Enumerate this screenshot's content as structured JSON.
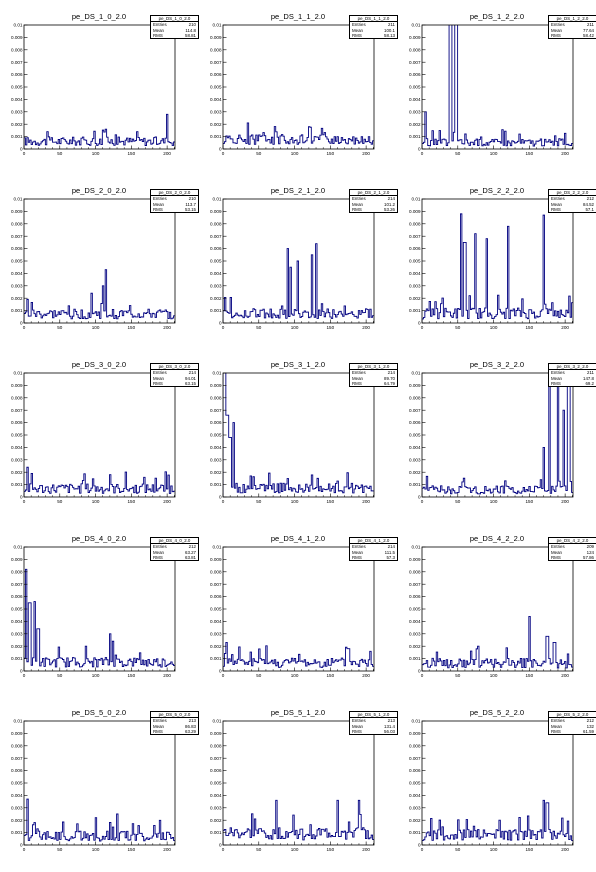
{
  "colors": {
    "line": "#000080",
    "frame": "#000000",
    "background": "#ffffff"
  },
  "stat_labels": [
    "Entries",
    "Mean",
    "RMS"
  ],
  "chart_data": [
    {
      "type": "line",
      "title": "pe_DS_1_0_2.0",
      "stats_name": "pe_DS_1_0_2.0",
      "entries": "210",
      "mean": "114.8",
      "rms": "58.81",
      "xlim": [
        0,
        211
      ],
      "ylim": [
        0,
        0.01
      ],
      "xticks": [
        "0",
        "50",
        "100",
        "150",
        "200"
      ],
      "yticks": [
        "0",
        "0.001",
        "0.002",
        "0.003",
        "0.004",
        "0.005",
        "0.006",
        "0.007",
        "0.008",
        "0.009",
        "0.01"
      ]
    },
    {
      "type": "line",
      "title": "pe_DS_1_1_2.0",
      "stats_name": "pe_DS_1_1_2.0",
      "entries": "211",
      "mean": "100.1",
      "rms": "58.13",
      "xlim": [
        0,
        211
      ],
      "ylim": [
        0,
        0.01
      ],
      "xticks": [
        "0",
        "50",
        "100",
        "150",
        "200"
      ],
      "yticks": [
        "0",
        "0.001",
        "0.002",
        "0.003",
        "0.004",
        "0.005",
        "0.006",
        "0.007",
        "0.008",
        "0.009",
        "0.01"
      ]
    },
    {
      "type": "line",
      "title": "pe_DS_1_2_2.0",
      "stats_name": "pe_DS_1_2_2.0",
      "entries": "211",
      "mean": "77.64",
      "rms": "58.42",
      "xlim": [
        0,
        211
      ],
      "ylim": [
        0,
        0.01
      ],
      "xticks": [
        "0",
        "50",
        "100",
        "150",
        "200"
      ],
      "yticks": [
        "0",
        "0.001",
        "0.002",
        "0.003",
        "0.004",
        "0.005",
        "0.006",
        "0.007",
        "0.008",
        "0.009",
        "0.01"
      ]
    },
    {
      "type": "line",
      "title": "pe_DS_2_0_2.0",
      "stats_name": "pe_DS_2_0_2.0",
      "entries": "210",
      "mean": "113.7",
      "rms": "53.15",
      "xlim": [
        0,
        211
      ],
      "ylim": [
        0,
        0.01
      ],
      "xticks": [
        "0",
        "50",
        "100",
        "150",
        "200"
      ],
      "yticks": [
        "0",
        "0.001",
        "0.002",
        "0.003",
        "0.004",
        "0.005",
        "0.006",
        "0.007",
        "0.008",
        "0.009",
        "0.01"
      ]
    },
    {
      "type": "line",
      "title": "pe_DS_2_1_2.0",
      "stats_name": "pe_DS_2_1_2.0",
      "entries": "214",
      "mean": "101.2",
      "rms": "53.26",
      "xlim": [
        0,
        211
      ],
      "ylim": [
        0,
        0.01
      ],
      "xticks": [
        "0",
        "50",
        "100",
        "150",
        "200"
      ],
      "yticks": [
        "0",
        "0.001",
        "0.002",
        "0.003",
        "0.004",
        "0.005",
        "0.006",
        "0.007",
        "0.008",
        "0.009",
        "0.01"
      ]
    },
    {
      "type": "line",
      "title": "pe_DS_2_2_2.0",
      "stats_name": "pe_DS_2_2_2.0",
      "entries": "212",
      "mean": "84.52",
      "rms": "57.1",
      "xlim": [
        0,
        211
      ],
      "ylim": [
        0,
        0.01
      ],
      "xticks": [
        "0",
        "50",
        "100",
        "150",
        "200"
      ],
      "yticks": [
        "0",
        "0.001",
        "0.002",
        "0.003",
        "0.004",
        "0.005",
        "0.006",
        "0.007",
        "0.008",
        "0.009",
        "0.01"
      ]
    },
    {
      "type": "line",
      "title": "pe_DS_3_0_2.0",
      "stats_name": "pe_DS_3_0_2.0",
      "entries": "214",
      "mean": "94.01",
      "rms": "63.15",
      "xlim": [
        0,
        211
      ],
      "ylim": [
        0,
        0.01
      ],
      "xticks": [
        "0",
        "50",
        "100",
        "150",
        "200"
      ],
      "yticks": [
        "0",
        "0.001",
        "0.002",
        "0.003",
        "0.004",
        "0.005",
        "0.006",
        "0.007",
        "0.008",
        "0.009",
        "0.01"
      ]
    },
    {
      "type": "line",
      "title": "pe_DS_3_1_2.0",
      "stats_name": "pe_DS_3_1_2.0",
      "entries": "214",
      "mean": "89.70",
      "rms": "64.79",
      "xlim": [
        0,
        211
      ],
      "ylim": [
        0,
        0.01
      ],
      "xticks": [
        "0",
        "50",
        "100",
        "150",
        "200"
      ],
      "yticks": [
        "0",
        "0.001",
        "0.002",
        "0.003",
        "0.004",
        "0.005",
        "0.006",
        "0.007",
        "0.008",
        "0.009",
        "0.01"
      ]
    },
    {
      "type": "line",
      "title": "pe_DS_3_2_2.0",
      "stats_name": "pe_DS_3_2_2.0",
      "entries": "211",
      "mean": "147.8",
      "rms": "69.2",
      "xlim": [
        0,
        211
      ],
      "ylim": [
        0,
        0.01
      ],
      "xticks": [
        "0",
        "50",
        "100",
        "150",
        "200"
      ],
      "yticks": [
        "0",
        "0.001",
        "0.002",
        "0.003",
        "0.004",
        "0.005",
        "0.006",
        "0.007",
        "0.008",
        "0.009",
        "0.01"
      ]
    },
    {
      "type": "line",
      "title": "pe_DS_4_0_2.0",
      "stats_name": "pe_DS_4_0_2.0",
      "entries": "212",
      "mean": "63.27",
      "rms": "63.81",
      "xlim": [
        0,
        211
      ],
      "ylim": [
        0,
        0.01
      ],
      "xticks": [
        "0",
        "50",
        "100",
        "150",
        "200"
      ],
      "yticks": [
        "0",
        "0.001",
        "0.002",
        "0.003",
        "0.004",
        "0.005",
        "0.006",
        "0.007",
        "0.008",
        "0.009",
        "0.01"
      ]
    },
    {
      "type": "line",
      "title": "pe_DS_4_1_2.0",
      "stats_name": "pe_DS_4_1_2.0",
      "entries": "214",
      "mean": "111.5",
      "rms": "57.3",
      "xlim": [
        0,
        211
      ],
      "ylim": [
        0,
        0.01
      ],
      "xticks": [
        "0",
        "50",
        "100",
        "150",
        "200"
      ],
      "yticks": [
        "0",
        "0.001",
        "0.002",
        "0.003",
        "0.004",
        "0.005",
        "0.006",
        "0.007",
        "0.008",
        "0.009",
        "0.01"
      ]
    },
    {
      "type": "line",
      "title": "pe_DS_4_2_2.0",
      "stats_name": "pe_DS_4_2_2.0",
      "entries": "209",
      "mean": "124",
      "rms": "57.86",
      "xlim": [
        0,
        211
      ],
      "ylim": [
        0,
        0.01
      ],
      "xticks": [
        "0",
        "50",
        "100",
        "150",
        "200"
      ],
      "yticks": [
        "0",
        "0.001",
        "0.002",
        "0.003",
        "0.004",
        "0.005",
        "0.006",
        "0.007",
        "0.008",
        "0.009",
        "0.01"
      ]
    },
    {
      "type": "line",
      "title": "pe_DS_5_0_2.0",
      "stats_name": "pe_DS_5_0_2.0",
      "entries": "213",
      "mean": "86.83",
      "rms": "63.29",
      "xlim": [
        0,
        211
      ],
      "ylim": [
        0,
        0.01
      ],
      "xticks": [
        "0",
        "50",
        "100",
        "150",
        "200"
      ],
      "yticks": [
        "0",
        "0.001",
        "0.002",
        "0.003",
        "0.004",
        "0.005",
        "0.006",
        "0.007",
        "0.008",
        "0.009",
        "0.01"
      ]
    },
    {
      "type": "line",
      "title": "pe_DS_5_1_2.0",
      "stats_name": "pe_DS_5_1_2.0",
      "entries": "213",
      "mean": "131.4",
      "rms": "56.03",
      "xlim": [
        0,
        211
      ],
      "ylim": [
        0,
        0.01
      ],
      "xticks": [
        "0",
        "50",
        "100",
        "150",
        "200"
      ],
      "yticks": [
        "0",
        "0.001",
        "0.002",
        "0.003",
        "0.004",
        "0.005",
        "0.006",
        "0.007",
        "0.008",
        "0.009",
        "0.01"
      ]
    },
    {
      "type": "line",
      "title": "pe_DS_5_2_2.0",
      "stats_name": "pe_DS_5_2_2.0",
      "entries": "212",
      "mean": "132",
      "rms": "61.59",
      "xlim": [
        0,
        211
      ],
      "ylim": [
        0,
        0.01
      ],
      "xticks": [
        "0",
        "50",
        "100",
        "150",
        "200"
      ],
      "yticks": [
        "0",
        "0.001",
        "0.002",
        "0.003",
        "0.004",
        "0.005",
        "0.006",
        "0.007",
        "0.008",
        "0.009",
        "0.01"
      ]
    }
  ]
}
